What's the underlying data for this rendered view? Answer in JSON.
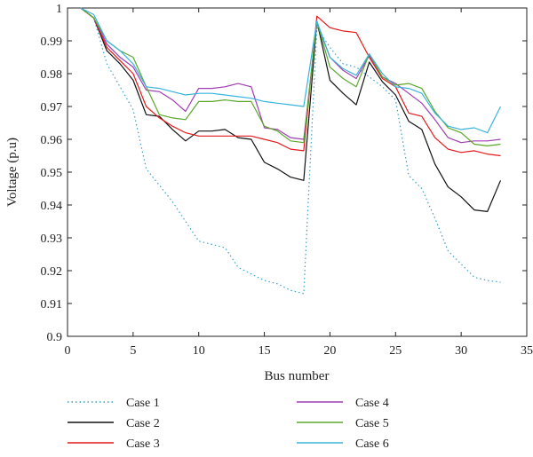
{
  "chart_data": {
    "type": "line",
    "title": "",
    "xlabel": "Bus number",
    "ylabel": "Voltage (p.u)",
    "xlim": [
      0,
      35
    ],
    "ylim": [
      0.9,
      1.0
    ],
    "xticks": [
      0,
      5,
      10,
      15,
      20,
      25,
      30,
      35
    ],
    "yticks": [
      0.9,
      0.91,
      0.92,
      0.93,
      0.94,
      0.95,
      0.96,
      0.97,
      0.98,
      0.99,
      1
    ],
    "ytick_labels": [
      "0.9",
      "0.91",
      "0.92",
      "0.93",
      "0.94",
      "0.95",
      "0.96",
      "0.97",
      "0.98",
      "0.99",
      "1"
    ],
    "grid": false,
    "legend_position": "bottom",
    "x": [
      1,
      2,
      3,
      4,
      5,
      6,
      7,
      8,
      9,
      10,
      11,
      12,
      13,
      14,
      15,
      16,
      17,
      18,
      19,
      20,
      21,
      22,
      23,
      24,
      25,
      26,
      27,
      28,
      29,
      30,
      31,
      32,
      33
    ],
    "series": [
      {
        "name": "Case 1",
        "color": "#3aa0c8",
        "style": "dotted",
        "values": [
          1.0,
          0.997,
          0.983,
          0.976,
          0.969,
          0.951,
          0.946,
          0.941,
          0.935,
          0.929,
          0.928,
          0.927,
          0.921,
          0.919,
          0.917,
          0.916,
          0.914,
          0.913,
          0.994,
          0.988,
          0.983,
          0.982,
          0.979,
          0.976,
          0.972,
          0.949,
          0.945,
          0.936,
          0.926,
          0.922,
          0.918,
          0.917,
          0.9165
        ]
      },
      {
        "name": "Case 2",
        "color": "#111111",
        "style": "solid",
        "values": [
          1.0,
          0.997,
          0.987,
          0.983,
          0.978,
          0.9675,
          0.967,
          0.963,
          0.9595,
          0.9625,
          0.9625,
          0.963,
          0.9605,
          0.96,
          0.953,
          0.951,
          0.9485,
          0.9475,
          0.996,
          0.978,
          0.974,
          0.9705,
          0.9835,
          0.9775,
          0.9735,
          0.9655,
          0.963,
          0.9525,
          0.9455,
          0.9425,
          0.9385,
          0.938,
          0.9475
        ]
      },
      {
        "name": "Case 3",
        "color": "#e41a1c",
        "style": "solid",
        "values": [
          1.0,
          0.997,
          0.988,
          0.984,
          0.98,
          0.97,
          0.9665,
          0.964,
          0.962,
          0.961,
          0.961,
          0.961,
          0.961,
          0.961,
          0.96,
          0.959,
          0.957,
          0.9565,
          0.9975,
          0.994,
          0.993,
          0.9925,
          0.985,
          0.9785,
          0.976,
          0.968,
          0.967,
          0.9605,
          0.957,
          0.956,
          0.9565,
          0.9555,
          0.955
        ]
      },
      {
        "name": "Case 4",
        "color": "#a03cb4",
        "style": "solid",
        "values": [
          1.0,
          0.997,
          0.989,
          0.985,
          0.982,
          0.975,
          0.9745,
          0.972,
          0.9685,
          0.9755,
          0.9755,
          0.976,
          0.977,
          0.976,
          0.9635,
          0.963,
          0.9605,
          0.96,
          0.9955,
          0.985,
          0.981,
          0.9785,
          0.9855,
          0.979,
          0.977,
          0.974,
          0.971,
          0.966,
          0.9605,
          0.959,
          0.9595,
          0.9595,
          0.96
        ]
      },
      {
        "name": "Case 5",
        "color": "#5aa82a",
        "style": "solid",
        "values": [
          1.0,
          0.997,
          0.99,
          0.987,
          0.985,
          0.976,
          0.9675,
          0.9665,
          0.966,
          0.9715,
          0.9715,
          0.972,
          0.9715,
          0.9715,
          0.964,
          0.9625,
          0.9595,
          0.959,
          0.996,
          0.982,
          0.9785,
          0.976,
          0.986,
          0.979,
          0.9765,
          0.977,
          0.9755,
          0.9685,
          0.9635,
          0.962,
          0.9585,
          0.958,
          0.9585
        ]
      },
      {
        "name": "Case 6",
        "color": "#38b4dc",
        "style": "solid",
        "values": [
          1.0,
          0.998,
          0.99,
          0.987,
          0.983,
          0.976,
          0.9755,
          0.9745,
          0.9735,
          0.974,
          0.974,
          0.9735,
          0.973,
          0.9725,
          0.9715,
          0.971,
          0.9705,
          0.97,
          0.996,
          0.985,
          0.9815,
          0.9795,
          0.986,
          0.98,
          0.976,
          0.9755,
          0.974,
          0.968,
          0.964,
          0.963,
          0.9635,
          0.962,
          0.97
        ]
      }
    ]
  }
}
